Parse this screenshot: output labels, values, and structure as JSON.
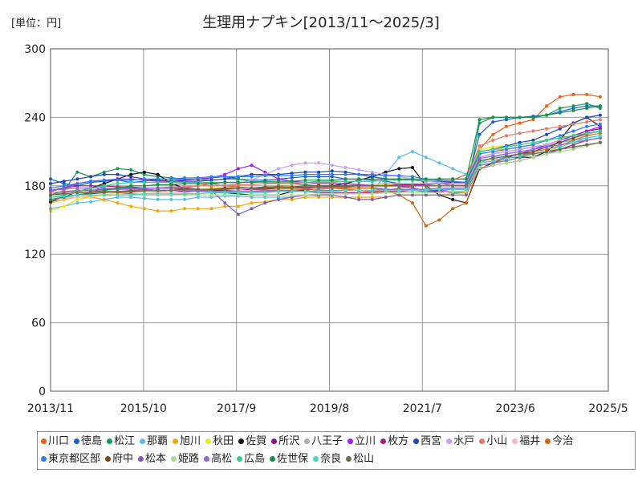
{
  "chart_data": {
    "type": "line",
    "title": "生理用ナプキン[2013/11〜2025/3]",
    "unit_label": "[単位：円]",
    "xlabel": "",
    "ylabel": "",
    "x_ticks": [
      "2013/11",
      "2015/10",
      "2017/9",
      "2019/8",
      "2021/7",
      "2023/6",
      "2025/5"
    ],
    "x_range": [
      "2013/11",
      "2025/5"
    ],
    "ylim": [
      0,
      300
    ],
    "y_ticks": [
      0,
      60,
      120,
      180,
      240,
      300
    ],
    "grid": true,
    "legend_position": "bottom",
    "series": [
      {
        "name": "川口",
        "color": "#e8601c",
        "values": [
          170,
          172,
          175,
          174,
          180,
          179,
          178,
          176,
          175,
          176,
          178,
          180,
          182,
          180,
          179,
          178,
          178,
          180,
          180,
          178,
          177,
          178,
          177,
          176,
          175,
          176,
          178,
          180,
          181,
          182,
          185,
          190,
          212,
          225,
          232,
          235,
          238,
          250,
          258,
          260,
          260,
          258
        ]
      },
      {
        "name": "徳島",
        "color": "#1a5fd0",
        "values": [
          186,
          182,
          180,
          183,
          184,
          185,
          183,
          184,
          186,
          186,
          185,
          186,
          187,
          188,
          186,
          185,
          185,
          186,
          187,
          188,
          188,
          188,
          186,
          186,
          185,
          184,
          182,
          181,
          182,
          182,
          181,
          180,
          225,
          236,
          238,
          240,
          241,
          242,
          245,
          248,
          250,
          250
        ]
      },
      {
        "name": "松江",
        "color": "#15985e",
        "values": [
          172,
          176,
          192,
          188,
          192,
          195,
          194,
          190,
          188,
          187,
          186,
          186,
          185,
          186,
          186,
          184,
          183,
          182,
          182,
          181,
          180,
          180,
          179,
          178,
          178,
          177,
          177,
          176,
          175,
          175,
          174,
          174,
          235,
          240,
          240,
          240,
          240,
          242,
          248,
          250,
          252,
          248
        ]
      },
      {
        "name": "那覇",
        "color": "#5bbcea",
        "values": [
          160,
          162,
          165,
          166,
          168,
          170,
          170,
          169,
          168,
          168,
          168,
          170,
          170,
          171,
          171,
          170,
          170,
          170,
          170,
          172,
          172,
          173,
          173,
          174,
          175,
          190,
          205,
          210,
          205,
          200,
          195,
          190,
          200,
          205,
          208,
          210,
          212,
          215,
          218,
          220,
          222,
          224
        ]
      },
      {
        "name": "旭川",
        "color": "#efa710",
        "values": [
          165,
          168,
          170,
          170,
          168,
          165,
          162,
          160,
          158,
          158,
          160,
          160,
          160,
          162,
          162,
          165,
          166,
          168,
          168,
          170,
          170,
          170,
          170,
          170,
          170,
          170,
          172,
          172,
          172,
          172,
          173,
          174,
          210,
          212,
          212,
          214,
          216,
          220,
          222,
          224,
          226,
          228
        ]
      },
      {
        "name": "秋田",
        "color": "#e8e820",
        "values": [
          158,
          162,
          168,
          170,
          172,
          174,
          175,
          175,
          176,
          176,
          177,
          177,
          178,
          178,
          178,
          178,
          179,
          179,
          180,
          180,
          180,
          180,
          180,
          180,
          180,
          181,
          181,
          181,
          181,
          182,
          182,
          182,
          212,
          214,
          215,
          216,
          218,
          220,
          222,
          224,
          226,
          228
        ]
      },
      {
        "name": "佐賀",
        "color": "#111111",
        "values": [
          166,
          170,
          175,
          178,
          182,
          186,
          190,
          192,
          190,
          182,
          178,
          176,
          175,
          174,
          173,
          172,
          172,
          172,
          175,
          176,
          178,
          180,
          182,
          185,
          188,
          192,
          195,
          196,
          180,
          172,
          168,
          165,
          195,
          200,
          205,
          205,
          205,
          210,
          220,
          235,
          240,
          232
        ]
      },
      {
        "name": "所沢",
        "color": "#8a0c8f",
        "values": [
          168,
          170,
          172,
          174,
          176,
          178,
          178,
          177,
          176,
          176,
          175,
          175,
          176,
          176,
          176,
          177,
          177,
          178,
          178,
          178,
          179,
          179,
          180,
          180,
          180,
          180,
          181,
          181,
          181,
          182,
          182,
          182,
          205,
          208,
          210,
          212,
          214,
          216,
          220,
          224,
          228,
          230
        ]
      },
      {
        "name": "八王子",
        "color": "#a9aeb5",
        "values": [
          172,
          174,
          176,
          176,
          175,
          174,
          174,
          175,
          175,
          176,
          176,
          177,
          177,
          177,
          178,
          178,
          178,
          179,
          179,
          180,
          180,
          180,
          180,
          181,
          181,
          182,
          182,
          182,
          182,
          182,
          183,
          183,
          200,
          202,
          205,
          208,
          210,
          214,
          218,
          222,
          226,
          228
        ]
      },
      {
        "name": "立川",
        "color": "#a020f0",
        "values": [
          175,
          178,
          182,
          184,
          185,
          186,
          186,
          185,
          184,
          184,
          185,
          186,
          187,
          190,
          195,
          198,
          192,
          186,
          184,
          183,
          182,
          182,
          182,
          181,
          180,
          180,
          180,
          178,
          176,
          175,
          175,
          175,
          200,
          202,
          205,
          208,
          212,
          216,
          220,
          224,
          228,
          232
        ]
      },
      {
        "name": "枚方",
        "color": "#a51d7a",
        "values": [
          176,
          178,
          180,
          180,
          180,
          179,
          179,
          178,
          178,
          178,
          178,
          177,
          177,
          176,
          176,
          176,
          175,
          175,
          175,
          175,
          174,
          174,
          174,
          174,
          174,
          175,
          175,
          176,
          176,
          176,
          177,
          177,
          195,
          198,
          200,
          202,
          205,
          208,
          212,
          216,
          220,
          222
        ]
      },
      {
        "name": "西宮",
        "color": "#2143b0",
        "values": [
          182,
          184,
          186,
          188,
          190,
          190,
          188,
          186,
          185,
          184,
          184,
          184,
          185,
          186,
          188,
          190,
          190,
          190,
          191,
          192,
          192,
          193,
          192,
          190,
          188,
          186,
          186,
          185,
          184,
          184,
          183,
          183,
          210,
          212,
          215,
          218,
          220,
          225,
          230,
          235,
          240,
          242
        ]
      },
      {
        "name": "水戸",
        "color": "#c9a0ec",
        "values": [
          170,
          172,
          174,
          175,
          176,
          177,
          178,
          178,
          178,
          179,
          179,
          180,
          180,
          181,
          182,
          185,
          190,
          195,
          198,
          200,
          200,
          198,
          196,
          194,
          192,
          190,
          188,
          186,
          184,
          183,
          182,
          182,
          205,
          208,
          210,
          212,
          214,
          216,
          220,
          222,
          225,
          228
        ]
      },
      {
        "name": "小山",
        "color": "#e5786a",
        "values": [
          174,
          175,
          176,
          176,
          177,
          177,
          178,
          178,
          178,
          179,
          179,
          180,
          180,
          180,
          181,
          181,
          182,
          182,
          182,
          183,
          183,
          183,
          184,
          184,
          184,
          185,
          185,
          185,
          185,
          186,
          186,
          186,
          215,
          220,
          224,
          226,
          228,
          230,
          232,
          234,
          236,
          238
        ]
      },
      {
        "name": "福井",
        "color": "#f4b8c8",
        "values": [
          168,
          169,
          170,
          171,
          172,
          172,
          173,
          173,
          174,
          174,
          174,
          175,
          175,
          175,
          176,
          176,
          176,
          177,
          177,
          177,
          178,
          178,
          178,
          179,
          179,
          179,
          180,
          180,
          180,
          180,
          181,
          181,
          200,
          202,
          204,
          206,
          208,
          210,
          212,
          214,
          216,
          218
        ]
      },
      {
        "name": "今治",
        "color": "#d2670f",
        "values": [
          172,
          174,
          176,
          176,
          175,
          174,
          173,
          172,
          172,
          172,
          173,
          173,
          174,
          174,
          175,
          175,
          176,
          176,
          176,
          177,
          177,
          178,
          178,
          178,
          178,
          176,
          172,
          165,
          145,
          150,
          160,
          165,
          198,
          200,
          204,
          206,
          210,
          212,
          215,
          220,
          224,
          226
        ]
      },
      {
        "name": "東京都区部",
        "color": "#2f7ef0",
        "values": [
          178,
          180,
          182,
          184,
          185,
          185,
          185,
          186,
          186,
          186,
          187,
          187,
          188,
          188,
          188,
          188,
          189,
          189,
          189,
          190,
          190,
          190,
          190,
          190,
          190,
          189,
          189,
          188,
          186,
          185,
          184,
          183,
          208,
          210,
          212,
          214,
          216,
          220,
          224,
          228,
          232,
          234
        ]
      },
      {
        "name": "府中",
        "color": "#7a4a1e",
        "values": [
          170,
          171,
          172,
          173,
          174,
          175,
          175,
          176,
          176,
          176,
          177,
          177,
          177,
          178,
          178,
          178,
          179,
          179,
          179,
          180,
          180,
          180,
          180,
          180,
          180,
          180,
          180,
          180,
          180,
          180,
          180,
          180,
          202,
          204,
          206,
          208,
          210,
          214,
          218,
          222,
          226,
          228
        ]
      },
      {
        "name": "松本",
        "color": "#7d5fb5",
        "values": [
          172,
          174,
          176,
          176,
          177,
          178,
          178,
          178,
          178,
          178,
          177,
          176,
          176,
          165,
          155,
          160,
          165,
          168,
          170,
          172,
          172,
          172,
          170,
          168,
          168,
          170,
          172,
          172,
          172,
          172,
          172,
          172,
          198,
          200,
          202,
          205,
          208,
          210,
          212,
          214,
          216,
          218
        ]
      },
      {
        "name": "姫路",
        "color": "#a6dc8a",
        "values": [
          168,
          170,
          172,
          172,
          172,
          172,
          172,
          172,
          172,
          172,
          172,
          172,
          172,
          172,
          172,
          172,
          172,
          172,
          172,
          172,
          173,
          173,
          173,
          173,
          173,
          174,
          174,
          174,
          174,
          174,
          175,
          175,
          196,
          198,
          200,
          202,
          205,
          208,
          210,
          212,
          215,
          218
        ]
      },
      {
        "name": "高松",
        "color": "#8c6cd6",
        "values": [
          176,
          177,
          178,
          178,
          178,
          177,
          177,
          177,
          176,
          176,
          176,
          175,
          175,
          175,
          175,
          175,
          175,
          175,
          175,
          175,
          176,
          176,
          176,
          176,
          176,
          177,
          177,
          177,
          177,
          178,
          178,
          178,
          204,
          206,
          208,
          210,
          212,
          214,
          216,
          218,
          220,
          222
        ]
      },
      {
        "name": "広島",
        "color": "#36cc8e",
        "values": [
          170,
          172,
          175,
          178,
          180,
          182,
          183,
          183,
          183,
          183,
          183,
          183,
          183,
          183,
          183,
          183,
          183,
          183,
          183,
          183,
          184,
          184,
          184,
          184,
          184,
          185,
          185,
          185,
          185,
          186,
          186,
          186,
          210,
          212,
          214,
          216,
          218,
          220,
          222,
          224,
          226,
          228
        ]
      },
      {
        "name": "佐世保",
        "color": "#1b8f4a",
        "values": [
          168,
          170,
          172,
          174,
          176,
          178,
          180,
          180,
          181,
          181,
          182,
          182,
          182,
          183,
          183,
          183,
          184,
          184,
          184,
          185,
          185,
          185,
          186,
          186,
          186,
          186,
          186,
          186,
          186,
          186,
          186,
          186,
          238,
          240,
          240,
          240,
          240,
          242,
          244,
          246,
          248,
          250
        ]
      },
      {
        "name": "奈良",
        "color": "#3fd9c4",
        "values": [
          170,
          171,
          172,
          172,
          172,
          172,
          172,
          173,
          173,
          173,
          173,
          173,
          174,
          174,
          174,
          174,
          174,
          175,
          175,
          175,
          175,
          175,
          176,
          176,
          176,
          176,
          176,
          176,
          176,
          177,
          177,
          177,
          200,
          202,
          204,
          206,
          208,
          210,
          214,
          218,
          222,
          224
        ]
      },
      {
        "name": "松山",
        "color": "#6f6f4a",
        "values": [
          172,
          173,
          174,
          174,
          175,
          175,
          176,
          176,
          176,
          176,
          177,
          177,
          177,
          177,
          178,
          178,
          178,
          178,
          178,
          179,
          179,
          179,
          179,
          180,
          180,
          180,
          180,
          180,
          180,
          180,
          180,
          180,
          202,
          204,
          206,
          208,
          208,
          210,
          212,
          214,
          216,
          218
        ]
      }
    ]
  }
}
